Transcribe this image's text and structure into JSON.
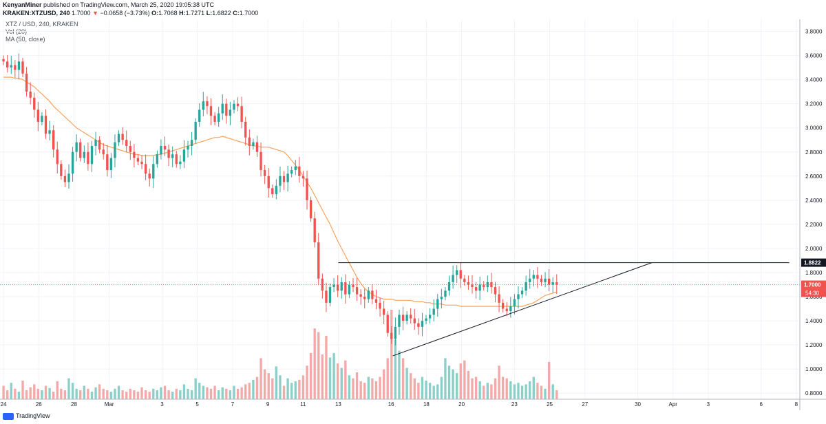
{
  "header": {
    "author": "KenyanMiner",
    "published_text": "published on TradingView.com, March 25, 2020 19:05:38 UTC",
    "symbol": "KRAKEN:XTZUSD, 240",
    "last": "1.7000",
    "change": "−0.0658 (−3.73%)",
    "open_label": "O:",
    "open": "1.7068",
    "high_label": "H:",
    "high": "1.7271",
    "low_label": "L:",
    "low": "1.6822",
    "close_label": "C:",
    "close": "1.7000"
  },
  "legend": {
    "title": "XTZ / USD, 240, KRAKEN",
    "vol": "Vol (20)",
    "ma": "MA (50, close)"
  },
  "footer": {
    "brand": "TradingView"
  },
  "colors": {
    "up": "#26a69a",
    "down": "#ef5350",
    "ma": "#f7a35c",
    "vol_up": "#8ccfc8",
    "vol_down": "#f4a9a9",
    "last_price": "#ef5350"
  },
  "chart_data": {
    "type": "candlestick",
    "timeframe": "240",
    "y_axis": {
      "ylim": [
        0.75,
        3.9
      ],
      "ticks": [
        "3.8000",
        "3.6000",
        "3.4000",
        "3.2000",
        "3.0000",
        "2.8000",
        "2.6000",
        "2.4000",
        "2.2000",
        "2.0000",
        "1.8000",
        "1.6000",
        "1.4000",
        "1.2000",
        "1.0000",
        "0.8000"
      ],
      "side": "right"
    },
    "x_axis": {
      "ticks": [
        "24",
        "26",
        "28",
        "Mar",
        "3",
        "5",
        "7",
        "9",
        "11",
        "13",
        "16",
        "18",
        "20",
        "23",
        "25",
        "27",
        "30",
        "Apr",
        "3",
        "6",
        "8"
      ],
      "tick_days": [
        0,
        2,
        4,
        6,
        9,
        11,
        13,
        15,
        17,
        19,
        22,
        24,
        26,
        29,
        31,
        33,
        36,
        38,
        40,
        43,
        45
      ],
      "day_range": [
        -0.2,
        45.2
      ]
    },
    "price_labels": [
      {
        "label": "1.8822",
        "value": 1.8822,
        "style": "dark"
      },
      {
        "label": "1.7000",
        "value": 1.7,
        "style": "red"
      }
    ],
    "countdown": "54:30",
    "closes": [
      3.55,
      3.5,
      3.52,
      3.48,
      3.55,
      3.45,
      3.3,
      3.25,
      3.15,
      3.05,
      3.1,
      2.95,
      2.98,
      2.82,
      2.7,
      2.6,
      2.55,
      2.62,
      2.8,
      2.88,
      2.75,
      2.8,
      2.7,
      2.85,
      2.9,
      2.82,
      2.78,
      2.65,
      2.75,
      2.88,
      2.95,
      2.9,
      2.85,
      2.8,
      2.75,
      2.72,
      2.7,
      2.62,
      2.58,
      2.7,
      2.78,
      2.85,
      2.82,
      2.75,
      2.78,
      2.7,
      2.72,
      2.82,
      2.85,
      2.9,
      3.05,
      3.15,
      3.22,
      3.18,
      3.1,
      3.05,
      3.12,
      3.2,
      3.1,
      3.15,
      3.2,
      3.18,
      3.05,
      2.92,
      2.85,
      2.88,
      2.8,
      2.65,
      2.6,
      2.5,
      2.45,
      2.52,
      2.6,
      2.55,
      2.62,
      2.65,
      2.68,
      2.6,
      2.58,
      2.4,
      2.25,
      2.05,
      1.75,
      1.65,
      1.55,
      1.68,
      1.7,
      1.65,
      1.72,
      1.62,
      1.7,
      1.68,
      1.62,
      1.6,
      1.58,
      1.65,
      1.58,
      1.55,
      1.5,
      1.45,
      1.3,
      1.25,
      1.35,
      1.45,
      1.4,
      1.45,
      1.42,
      1.38,
      1.35,
      1.4,
      1.42,
      1.45,
      1.5,
      1.58,
      1.6,
      1.65,
      1.72,
      1.78,
      1.82,
      1.75,
      1.72,
      1.7,
      1.68,
      1.65,
      1.7,
      1.68,
      1.72,
      1.68,
      1.62,
      1.55,
      1.5,
      1.48,
      1.52,
      1.58,
      1.62,
      1.65,
      1.72,
      1.75,
      1.78,
      1.75,
      1.72,
      1.75,
      1.7,
      1.72,
      1.7
    ],
    "volumes": [
      18,
      12,
      22,
      14,
      10,
      25,
      12,
      16,
      20,
      14,
      12,
      18,
      15,
      10,
      24,
      14,
      12,
      28,
      22,
      14,
      12,
      18,
      14,
      10,
      16,
      20,
      14,
      12,
      10,
      14,
      18,
      12,
      10,
      14,
      12,
      10,
      16,
      12,
      10,
      14,
      12,
      16,
      18,
      12,
      10,
      14,
      12,
      20,
      14,
      12,
      28,
      22,
      18,
      16,
      14,
      18,
      12,
      16,
      14,
      12,
      18,
      14,
      16,
      20,
      22,
      26,
      30,
      55,
      40,
      35,
      28,
      44,
      32,
      18,
      28,
      22,
      24,
      26,
      32,
      45,
      62,
      95,
      90,
      60,
      85,
      56,
      62,
      48,
      42,
      52,
      32,
      28,
      36,
      24,
      22,
      30,
      28,
      24,
      30,
      40,
      55,
      120,
      80,
      65,
      55,
      42,
      35,
      28,
      22,
      30,
      25,
      22,
      18,
      20,
      30,
      55,
      45,
      40,
      35,
      48,
      52,
      38,
      28,
      30,
      24,
      18,
      22,
      20,
      28,
      45,
      30,
      28,
      24,
      20,
      22,
      18,
      20,
      24,
      30,
      22,
      18,
      14,
      50,
      20,
      12
    ],
    "ma_50": [
      3.42,
      3.42,
      3.42,
      3.41,
      3.41,
      3.4,
      3.38,
      3.36,
      3.34,
      3.31,
      3.28,
      3.25,
      3.22,
      3.18,
      3.15,
      3.12,
      3.09,
      3.06,
      3.03,
      3.0,
      2.98,
      2.96,
      2.94,
      2.92,
      2.9,
      2.88,
      2.86,
      2.85,
      2.84,
      2.83,
      2.82,
      2.81,
      2.8,
      2.79,
      2.78,
      2.78,
      2.77,
      2.77,
      2.77,
      2.77,
      2.78,
      2.78,
      2.79,
      2.8,
      2.81,
      2.82,
      2.83,
      2.84,
      2.85,
      2.86,
      2.87,
      2.88,
      2.89,
      2.9,
      2.91,
      2.92,
      2.92,
      2.93,
      2.92,
      2.91,
      2.9,
      2.89,
      2.88,
      2.87,
      2.86,
      2.85,
      2.85,
      2.84,
      2.84,
      2.84,
      2.83,
      2.82,
      2.81,
      2.8,
      2.77,
      2.73,
      2.69,
      2.65,
      2.6,
      2.55,
      2.5,
      2.44,
      2.38,
      2.32,
      2.26,
      2.2,
      2.13,
      2.06,
      2.0,
      1.94,
      1.88,
      1.82,
      1.76,
      1.71,
      1.67,
      1.64,
      1.62,
      1.6,
      1.59,
      1.58,
      1.58,
      1.58,
      1.57,
      1.57,
      1.57,
      1.57,
      1.57,
      1.56,
      1.56,
      1.56,
      1.55,
      1.55,
      1.54,
      1.54,
      1.54,
      1.53,
      1.53,
      1.53,
      1.53,
      1.52,
      1.52,
      1.52,
      1.52,
      1.52,
      1.52,
      1.52,
      1.52,
      1.52,
      1.52,
      1.52,
      1.52,
      1.52,
      1.52,
      1.52,
      1.52,
      1.52,
      1.53,
      1.54,
      1.55,
      1.57,
      1.59,
      1.61,
      1.62,
      1.63,
      1.64
    ],
    "trendlines": [
      {
        "name": "resistance",
        "from": [
          19.0,
          1.8822
        ],
        "to": [
          44.6,
          1.8822
        ]
      },
      {
        "name": "ascending-support",
        "from": [
          22.1,
          1.11
        ],
        "to": [
          36.8,
          1.8822
        ]
      }
    ]
  }
}
